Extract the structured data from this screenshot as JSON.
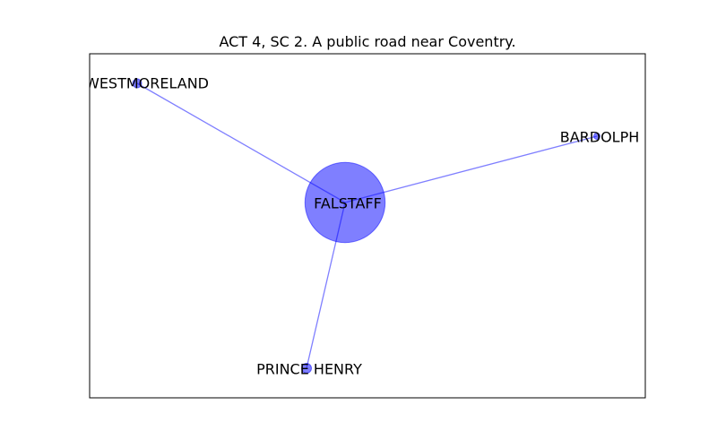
{
  "title": "ACT 4, SC 2. A public road near Coventry.",
  "colors": {
    "node_fill": "#0000ff",
    "edge": "#0000ff",
    "frame": "#000000",
    "background": "#ffffff"
  },
  "network": {
    "nodes": [
      {
        "id": "westmoreland",
        "label": "WESTMORELAND",
        "weight": 1
      },
      {
        "id": "bardolph",
        "label": "BARDOLPH",
        "weight": 0.5
      },
      {
        "id": "falstaff",
        "label": "FALSTAFF",
        "weight": 80
      },
      {
        "id": "prince-henry",
        "label": "PRINCE HENRY",
        "weight": 1.2
      }
    ],
    "edges": [
      {
        "source": "falstaff",
        "target": "westmoreland"
      },
      {
        "source": "falstaff",
        "target": "bardolph"
      },
      {
        "source": "falstaff",
        "target": "prince-henry"
      }
    ]
  }
}
